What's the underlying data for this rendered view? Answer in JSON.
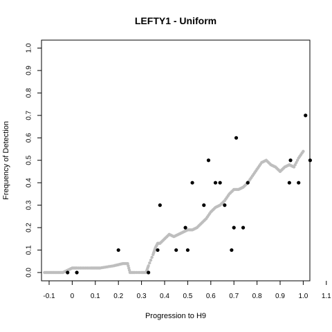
{
  "chart_data": {
    "type": "scatter",
    "title": "LEFTY1 - Uniform",
    "xlabel": "Progression to H9",
    "ylabel": "Frequency of Detection",
    "xlim": [
      -0.12,
      1.15
    ],
    "ylim": [
      0,
      1.02
    ],
    "xticks": [
      "-0.1",
      "0",
      "0.1",
      "0.2",
      "0.3",
      "0.4",
      "0.5",
      "0.6",
      "0.7",
      "0.8",
      "0.9",
      "1.0",
      "1.1"
    ],
    "xtick_values": [
      -0.1,
      0.0,
      0.1,
      0.2,
      0.3,
      0.4,
      0.5,
      0.6,
      0.7,
      0.8,
      0.9,
      1.0,
      1.1
    ],
    "yticks": [
      "0.0",
      "0.1",
      "0.2",
      "0.3",
      "0.4",
      "0.5",
      "0.6",
      "0.7",
      "0.8",
      "0.9",
      "1.0"
    ],
    "ytick_values": [
      0.0,
      0.1,
      0.2,
      0.3,
      0.4,
      0.5,
      0.6,
      0.7,
      0.8,
      0.9,
      1.0
    ],
    "grid": false,
    "series": [
      {
        "style": "points",
        "color": "#000000",
        "x": [
          -0.02,
          0.02,
          0.2,
          0.33,
          0.37,
          0.38,
          0.45,
          0.49,
          0.5,
          0.52,
          0.57,
          0.59,
          0.62,
          0.64,
          0.66,
          0.69,
          0.7,
          0.71,
          0.74,
          0.76,
          0.94,
          0.945,
          0.98,
          1.01,
          1.03
        ],
        "y": [
          0.0,
          0.0,
          0.1,
          0.0,
          0.1,
          0.3,
          0.1,
          0.2,
          0.1,
          0.4,
          0.3,
          0.5,
          0.4,
          0.4,
          0.3,
          0.1,
          0.2,
          0.6,
          0.2,
          0.4,
          0.4,
          0.5,
          0.4,
          0.7,
          0.5
        ]
      },
      {
        "style": "smooth",
        "color": "#bebebe",
        "x": [
          -0.12,
          -0.1,
          -0.08,
          -0.06,
          -0.04,
          -0.02,
          0.0,
          0.02,
          0.05,
          0.08,
          0.1,
          0.12,
          0.15,
          0.18,
          0.2,
          0.22,
          0.24,
          0.25,
          0.27,
          0.3,
          0.32,
          0.33,
          0.35,
          0.36,
          0.37,
          0.38,
          0.4,
          0.42,
          0.44,
          0.46,
          0.48,
          0.5,
          0.52,
          0.54,
          0.56,
          0.58,
          0.6,
          0.62,
          0.64,
          0.66,
          0.68,
          0.7,
          0.72,
          0.74,
          0.76,
          0.78,
          0.8,
          0.82,
          0.84,
          0.86,
          0.88,
          0.9,
          0.92,
          0.94,
          0.96,
          0.98,
          1.0
        ],
        "y": [
          0.0,
          0.0,
          0.0,
          0.0,
          0.0,
          0.01,
          0.02,
          0.02,
          0.02,
          0.02,
          0.02,
          0.02,
          0.025,
          0.03,
          0.035,
          0.04,
          0.04,
          0.0,
          0.0,
          0.0,
          0.0,
          0.03,
          0.08,
          0.11,
          0.13,
          0.13,
          0.15,
          0.17,
          0.16,
          0.17,
          0.18,
          0.19,
          0.19,
          0.2,
          0.22,
          0.24,
          0.27,
          0.29,
          0.3,
          0.32,
          0.35,
          0.37,
          0.37,
          0.38,
          0.4,
          0.43,
          0.46,
          0.49,
          0.5,
          0.48,
          0.47,
          0.45,
          0.47,
          0.48,
          0.47,
          0.51,
          0.54
        ]
      }
    ]
  }
}
